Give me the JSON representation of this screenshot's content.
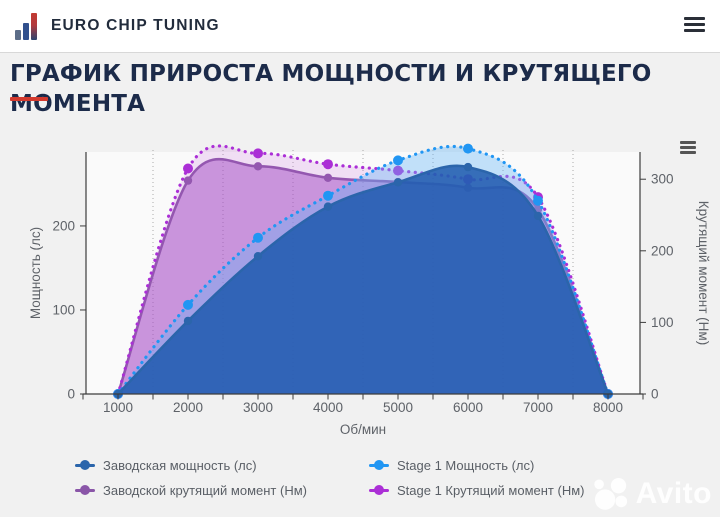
{
  "header": {
    "brand": "EURO CHIP TUNING",
    "menu_icon": "hamburger-icon"
  },
  "page": {
    "title": "ГРАФИК ПРИРОСТА МОЩНОСТИ И КРУТЯЩЕГО МОМЕНТА"
  },
  "colors": {
    "accent_red": "#d43a2e",
    "brand_navy": "#1c2b4a",
    "axis_text": "#5e6268",
    "axis_line": "#3c3c3c",
    "grid_line": "#a9a9a9",
    "plot_background": "#fafafa"
  },
  "chart_data": {
    "type": "line",
    "x": [
      1000,
      2000,
      3000,
      4000,
      5000,
      6000,
      7000,
      8000
    ],
    "xticks": [
      "1000",
      "2000",
      "3000",
      "4000",
      "5000",
      "6000",
      "7000",
      "8000"
    ],
    "xlabel": "Об/мин",
    "ylabel_left": "Мощность (лс)",
    "ylabel_right": "Крутящий момент (Нм)",
    "yticks_left": [
      0,
      100,
      200
    ],
    "yticks_right": [
      0,
      100,
      200,
      300
    ],
    "ylim_left": [
      0,
      288
    ],
    "ylim_right": [
      0,
      338
    ],
    "grid_x": [
      1500,
      2500,
      3500,
      4500,
      5500,
      6500,
      7500
    ],
    "grid_style": "dotted-vertical",
    "legend_position": "bottom",
    "series": [
      {
        "name": "Заводская мощность (лс)",
        "axis": "left",
        "line_style": "solid",
        "color": "#2b65ab",
        "fill_color": "#1d59ae",
        "fill_opacity": 0.85,
        "marker_radius": 4.2,
        "values": [
          0,
          87,
          164,
          223,
          252,
          270,
          212,
          0
        ]
      },
      {
        "name": "Stage 1 Мощность (лс)",
        "axis": "left",
        "line_style": "dotted",
        "color": "#2196f3",
        "fill_color": "#64b5f6",
        "fill_opacity": 0.38,
        "marker_radius": 5,
        "values": [
          0,
          106,
          186,
          236,
          278,
          292,
          230,
          0
        ]
      },
      {
        "name": "Заводской крутящий момент (Нм)",
        "axis": "right",
        "line_style": "solid",
        "color": "#8a56a8",
        "fill_color": "#9b46bf",
        "fill_opacity": 0.5,
        "marker_radius": 4.2,
        "values": [
          0,
          298,
          318,
          302,
          296,
          288,
          258,
          0
        ]
      },
      {
        "name": "Stage 1 Крутящий момент (Нм)",
        "axis": "right",
        "line_style": "dotted",
        "color": "#ab2fd6",
        "fill_color": "#c45fd6",
        "fill_opacity": 0.18,
        "marker_radius": 5,
        "values": [
          0,
          315,
          336,
          321,
          312,
          300,
          275,
          0
        ]
      }
    ]
  },
  "watermark": {
    "label": "Avito"
  }
}
